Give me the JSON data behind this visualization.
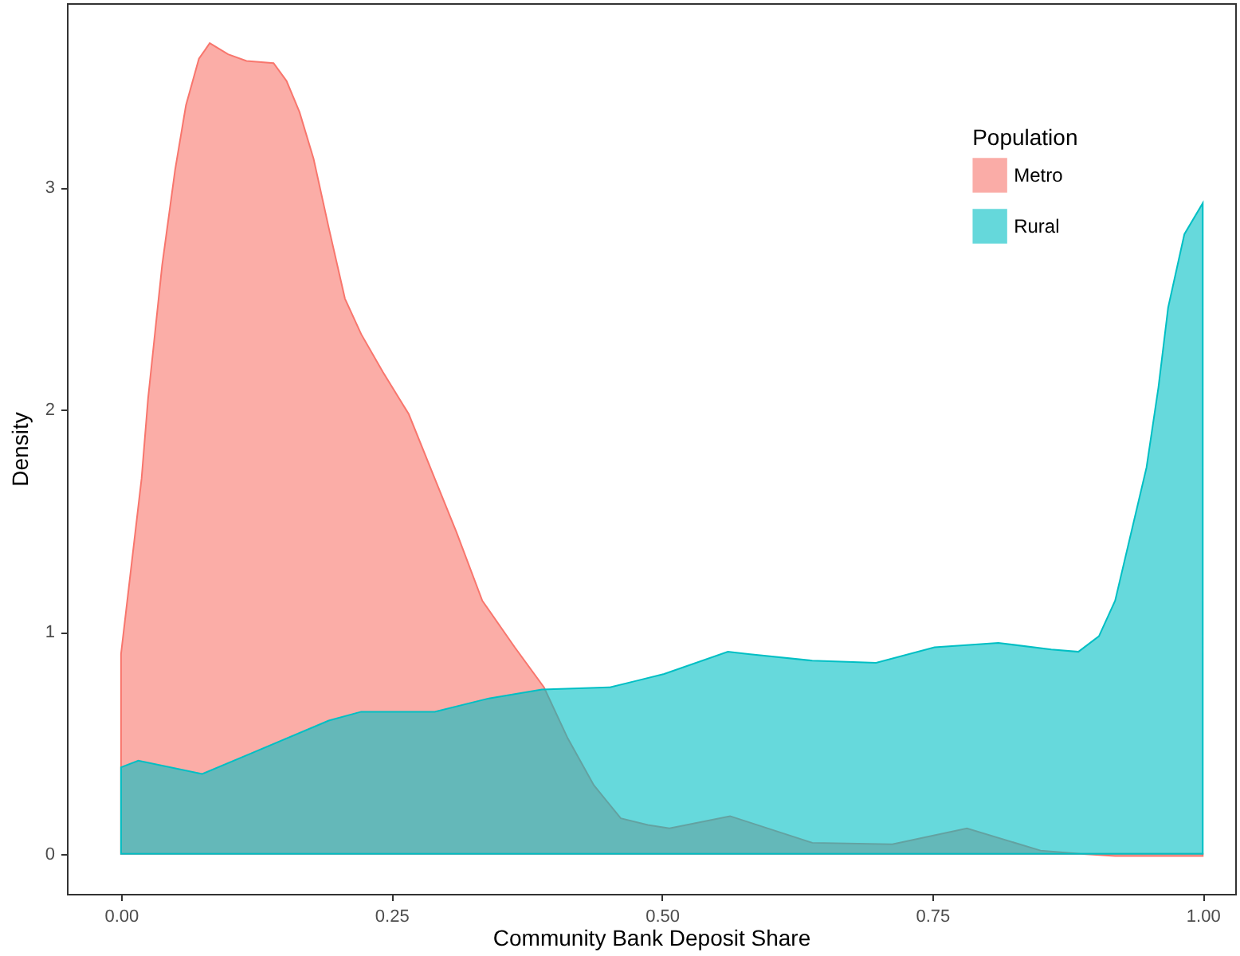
{
  "chart_data": {
    "type": "area",
    "xlabel": "Community Bank Deposit Share",
    "ylabel": "Density",
    "legend_title": "Population",
    "legend": "top right",
    "grid": false,
    "xlim": [
      -0.05,
      1.03
    ],
    "ylim": [
      -0.18,
      3.83
    ],
    "xticks": [
      {
        "value": 0,
        "label": "0.00"
      },
      0.25,
      {
        "value": 0.5,
        "label": "0.50"
      },
      0.75,
      {
        "value": 1,
        "label": "1.00"
      }
    ],
    "yticks": [
      0,
      1,
      2,
      3
    ],
    "series": [
      {
        "name": "Metro",
        "color": "#f8766d",
        "x": [
          0,
          0.019,
          0.025,
          0.038,
          0.05,
          0.06,
          0.072,
          0.082,
          0.099,
          0.116,
          0.141,
          0.153,
          0.165,
          0.178,
          0.192,
          0.207,
          0.222,
          0.242,
          0.266,
          0.29,
          0.31,
          0.334,
          0.364,
          0.391,
          0.413,
          0.437,
          0.462,
          0.487,
          0.507,
          0.563,
          0.639,
          0.713,
          0.782,
          0.85,
          0.887,
          0.919,
          1
        ],
        "values": [
          0.9,
          1.69,
          2.05,
          2.65,
          3.08,
          3.37,
          3.58,
          3.65,
          3.6,
          3.57,
          3.56,
          3.48,
          3.34,
          3.13,
          2.82,
          2.5,
          2.34,
          2.17,
          1.98,
          1.69,
          1.45,
          1.14,
          0.93,
          0.75,
          0.52,
          0.31,
          0.16,
          0.13,
          0.115,
          0.17,
          0.05,
          0.043,
          0.115,
          0.015,
          0,
          -0.01,
          -0.01
        ]
      },
      {
        "name": "Rural",
        "color": "#00bfc4",
        "x": [
          0,
          0.016,
          0.075,
          0.119,
          0.192,
          0.222,
          0.29,
          0.34,
          0.389,
          0.452,
          0.477,
          0.502,
          0.561,
          0.58,
          0.639,
          0.698,
          0.752,
          0.811,
          0.86,
          0.885,
          0.904,
          0.919,
          0.948,
          0.959,
          0.968,
          0.983,
          1
        ],
        "values": [
          0.39,
          0.42,
          0.36,
          0.45,
          0.6,
          0.64,
          0.64,
          0.7,
          0.74,
          0.75,
          0.78,
          0.81,
          0.91,
          0.9,
          0.87,
          0.86,
          0.93,
          0.95,
          0.92,
          0.91,
          0.98,
          1.14,
          1.74,
          2.1,
          2.46,
          2.79,
          2.93
        ]
      }
    ]
  }
}
